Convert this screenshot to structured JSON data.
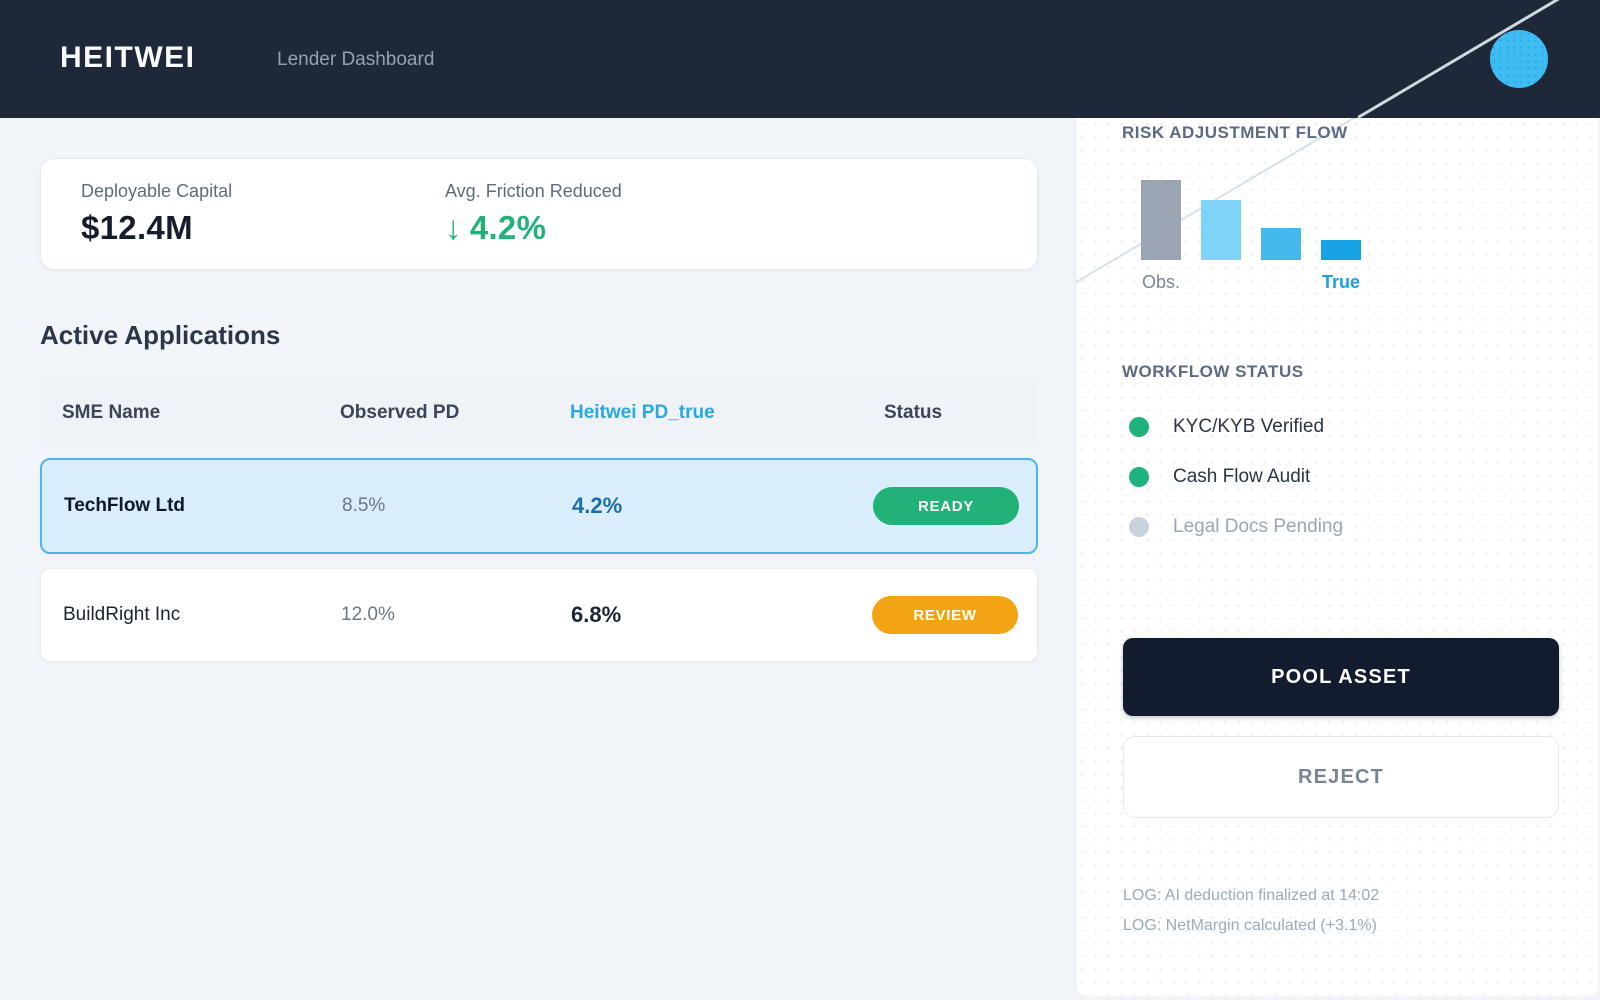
{
  "header": {
    "brand": "HEITWEI",
    "subtitle": "Lender Dashboard"
  },
  "stats": {
    "capital_label": "Deployable Capital",
    "capital_value": "$12.4M",
    "friction_label": "Avg. Friction Reduced",
    "friction_arrow": "↓",
    "friction_value": "4.2%"
  },
  "applications": {
    "title": "Active Applications",
    "columns": [
      "SME Name",
      "Observed PD",
      "Heitwei PD_true",
      "Status"
    ],
    "rows": [
      {
        "name": "TechFlow Ltd",
        "observed_pd": "8.5%",
        "pd_true": "4.2%",
        "status": "READY",
        "selected": true
      },
      {
        "name": "BuildRight Inc",
        "observed_pd": "12.0%",
        "pd_true": "6.8%",
        "status": "REVIEW",
        "selected": false
      }
    ]
  },
  "risk_flow": {
    "title": "RISK ADJUSTMENT FLOW",
    "chart": {
      "type": "bar",
      "description": "Four descending bars showing risk adjustment from observed PD to true PD",
      "relative_heights": [
        80,
        60,
        32,
        20
      ],
      "colors": [
        "#9AA4B3",
        "#7FD2F8",
        "#45B9EE",
        "#17A2E5"
      ],
      "pattern_bar_index": 2,
      "label_left": "Obs.",
      "label_right": "True"
    }
  },
  "workflow": {
    "title": "WORKFLOW STATUS",
    "items": [
      {
        "label": "KYC/KYB Verified",
        "done": true
      },
      {
        "label": "Cash Flow Audit",
        "done": true
      },
      {
        "label": "Legal Docs Pending",
        "done": false
      }
    ]
  },
  "actions": {
    "primary_label": "POOL ASSET",
    "secondary_label": "REJECT"
  },
  "logs": [
    "LOG: AI deduction finalized at 14:02",
    "LOG: NetMargin calculated (+3.1%)"
  ],
  "colors": {
    "header_bg": "#1F2838",
    "accent_blue": "#29A9E2",
    "pd_true_highlight": "#1A6FA9",
    "green": "#22B279",
    "avatar_blue": "#3EBDF4",
    "primary_button_bg": "#121C2E",
    "selected_row_bg": "#D9EDFB",
    "selected_row_border": "#51B5E9",
    "status": {
      "READY": "#21B277",
      "REVIEW": "#F3A413"
    }
  }
}
